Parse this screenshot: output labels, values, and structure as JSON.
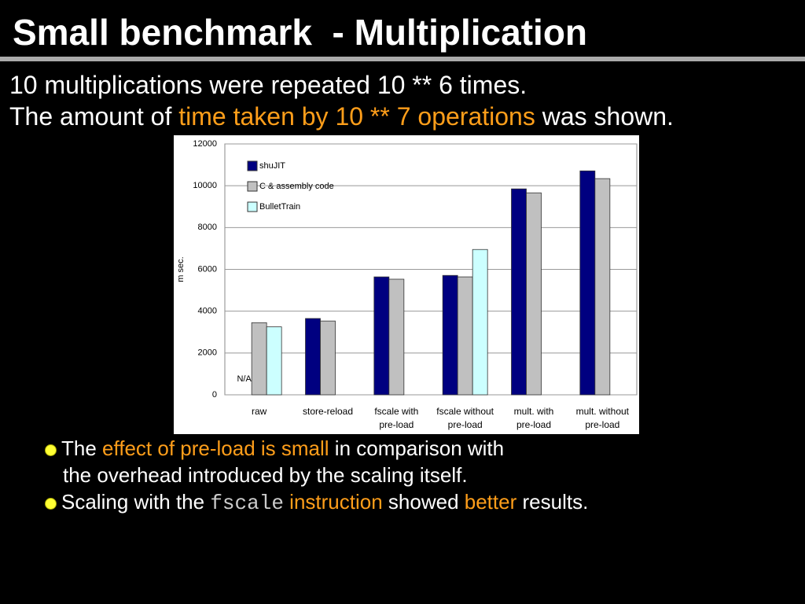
{
  "header": {
    "title": "Small benchmark  - Multiplication"
  },
  "intro": {
    "line1": "10 multiplications were repeated 10 ** 6 times.",
    "line2": [
      "The amount of ",
      "time taken by 10 ** 7 operations",
      " was shown."
    ]
  },
  "chart_data": {
    "type": "bar",
    "y_label": "m sec.",
    "categories": [
      "raw",
      "store-reload",
      "fscale with\npre-load",
      "fscale without\npre-load",
      "mult. with\npre-load",
      "mult. without\npre-load"
    ],
    "series": [
      {
        "name": "shuJIT",
        "color": "#000080",
        "values": [
          null,
          3650,
          5640,
          5710,
          9850,
          10710
        ]
      },
      {
        "name": "C & assembly code",
        "color": "#c0c0c0",
        "values": [
          3450,
          3530,
          5530,
          5640,
          9660,
          10340
        ]
      },
      {
        "name": "BulletTrain",
        "color": "#ccffff",
        "values": [
          3250,
          null,
          null,
          6950,
          null,
          null
        ]
      }
    ],
    "annotation": "N/A",
    "ylim": [
      0,
      12000
    ],
    "yticks": [
      0,
      2000,
      4000,
      6000,
      8000,
      10000,
      12000
    ],
    "grid": true,
    "legend": "upper left"
  },
  "bullets": {
    "item1": [
      "The ",
      "effect of pre-load is small",
      " in comparison with",
      "the overhead introduced by the scaling itself."
    ],
    "item2": [
      "Scaling with the ",
      "fscale",
      " instruction",
      " showed ",
      "better",
      " results."
    ]
  }
}
